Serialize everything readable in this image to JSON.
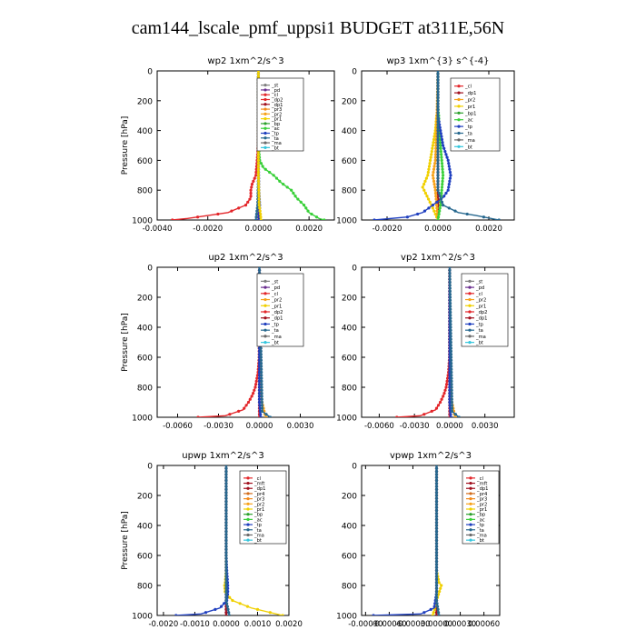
{
  "figure": {
    "title": "cam144_lscale_pmf_uppsi1  BUDGET at311E,56N"
  },
  "colors": {
    "st": "#7f7f7f",
    "pd": "#6a2d8f",
    "cl": "#e3262a",
    "dp1": "#a0101e",
    "dp2": "#e3262a",
    "mft": "#a0101e",
    "pr1": "#f0d000",
    "pr2": "#f7a21a",
    "pr3": "#f28a1c",
    "pr4": "#d26d1c",
    "bp": "#2ca02c",
    "bp1": "#2ca02c",
    "ac": "#39d039",
    "tp": "#1f3fbf",
    "ta": "#27688f",
    "ma": "#6a6a6a",
    "bt": "#35c6dd"
  },
  "chart_data": [
    {
      "type": "line",
      "title": "wp2  1xm^2/s^3",
      "ylabel": "Pressure [hPa]",
      "ylim": [
        1000,
        0
      ],
      "xlim": [
        -0.004,
        0.003
      ],
      "yticks": [
        "0",
        "200",
        "400",
        "600",
        "800",
        "1000"
      ],
      "xticks": [
        "-0.0040",
        "-0.0020",
        "0.0000",
        "0.0020"
      ],
      "legend": [
        "_st",
        "_pd",
        "_cl",
        "_dp2",
        "_dp1",
        "_pr3",
        "_pr2",
        "_pr1",
        "_bp",
        "_ac",
        "_tp",
        "_ta",
        "_ma",
        "_bt"
      ],
      "series": [
        {
          "key": "pd",
          "p": [
            0,
            200,
            400,
            600,
            700,
            800,
            900,
            950,
            1000
          ],
          "x": [
            0,
            0,
            0,
            0,
            0,
            0,
            0,
            0,
            0
          ]
        },
        {
          "key": "cl",
          "p": [
            0,
            300,
            500,
            600,
            700,
            760,
            800,
            850,
            900,
            950,
            990,
            1000
          ],
          "x": [
            0,
            0,
            -1e-05,
            -5e-05,
            -0.0001,
            -0.00025,
            -0.0003,
            -0.0003,
            -0.0005,
            -0.0012,
            -0.0028,
            -0.0034
          ]
        },
        {
          "key": "ac",
          "p": [
            0,
            500,
            600,
            650,
            700,
            750,
            800,
            850,
            900,
            950,
            990,
            1000
          ],
          "x": [
            0,
            0,
            5e-05,
            0.0002,
            0.0006,
            0.0009,
            0.0013,
            0.0015,
            0.0018,
            0.002,
            0.0024,
            0.0026
          ]
        },
        {
          "key": "tp",
          "p": [
            0,
            600,
            800,
            900,
            950,
            1000
          ],
          "x": [
            0,
            0,
            2e-05,
            5e-05,
            5e-05,
            3e-05
          ]
        },
        {
          "key": "ta",
          "p": [
            0,
            700,
            900,
            1000
          ],
          "x": [
            0,
            0,
            -3e-05,
            -0.0001
          ]
        },
        {
          "key": "pr1",
          "p": [
            0,
            700,
            900,
            960,
            1000
          ],
          "x": [
            0,
            0,
            3e-05,
            8e-05,
            0.0001
          ]
        }
      ]
    },
    {
      "type": "line",
      "title": "wp3  1xm^{3} s^{-4}",
      "ylabel": "",
      "ylim": [
        1000,
        0
      ],
      "xlim": [
        -0.003,
        0.003
      ],
      "yticks": [
        "0",
        "200",
        "400",
        "600",
        "800",
        "1000"
      ],
      "xticks": [
        "-0.0020",
        "0.0000",
        "0.0020"
      ],
      "legend": [
        "_cl",
        "_dp1",
        "_pr2",
        "_pr1",
        "_bp1",
        "_ac",
        "_tp",
        "_ta",
        "_ma",
        "_bt"
      ],
      "series": [
        {
          "key": "cl",
          "p": [
            0,
            200,
            400,
            600,
            800,
            1000
          ],
          "x": [
            0,
            0,
            0,
            0,
            0,
            0
          ]
        },
        {
          "key": "dp1",
          "p": [
            0,
            300,
            500,
            700,
            900,
            1000
          ],
          "x": [
            0,
            0,
            0,
            0,
            0,
            0
          ]
        },
        {
          "key": "pr1",
          "p": [
            0,
            250,
            300,
            400,
            500,
            600,
            700,
            780,
            850,
            920,
            1000
          ],
          "x": [
            0,
            0,
            -5e-05,
            -0.0001,
            -0.0002,
            -0.0003,
            -0.0004,
            -0.0006,
            -0.0004,
            -0.0002,
            0
          ]
        },
        {
          "key": "pr2",
          "p": [
            0,
            400,
            600,
            700,
            800,
            900,
            1000
          ],
          "x": [
            0,
            -5e-05,
            -0.0001,
            -0.0002,
            -0.0001,
            -5e-05,
            0
          ]
        },
        {
          "key": "ac",
          "p": [
            0,
            250,
            300,
            400,
            500,
            600,
            700,
            800,
            900,
            950,
            1000
          ],
          "x": [
            0,
            0,
            3e-05,
            5e-05,
            0.0001,
            0.00015,
            0.0002,
            0.00015,
            0.0001,
            5e-05,
            0
          ]
        },
        {
          "key": "tp",
          "p": [
            0,
            300,
            500,
            600,
            700,
            800,
            850,
            900,
            950,
            980,
            1000
          ],
          "x": [
            0,
            0,
            0.0002,
            0.0004,
            0.0005,
            0.0004,
            0.0002,
            -0.0002,
            -0.0006,
            -0.0012,
            -0.0025
          ]
        },
        {
          "key": "ta",
          "p": [
            0,
            800,
            900,
            950,
            970,
            1000
          ],
          "x": [
            0,
            0,
            0.0002,
            0.0008,
            0.0015,
            0.0024
          ]
        }
      ]
    },
    {
      "type": "line",
      "title": "up2  1xm^2/s^3",
      "ylabel": "Pressure [hPa]",
      "ylim": [
        1000,
        0
      ],
      "xlim": [
        -0.0075,
        0.0055
      ],
      "yticks": [
        "0",
        "200",
        "400",
        "600",
        "800",
        "1000"
      ],
      "xticks": [
        "-0.0060",
        "-0.0030",
        "0.0000",
        "0.0030"
      ],
      "legend": [
        "_st",
        "_pd",
        "_cl",
        "_pr2",
        "_pr1",
        "_dp2",
        "_dp1",
        "_tp",
        "_ta",
        "_ma",
        "_bt"
      ],
      "series": [
        {
          "key": "pd",
          "p": [
            0,
            200,
            400,
            600,
            800,
            1000
          ],
          "x": [
            0,
            0,
            0,
            0,
            0,
            0
          ]
        },
        {
          "key": "cl",
          "p": [
            0,
            200,
            400,
            600,
            800,
            900,
            1000
          ],
          "x": [
            0,
            0,
            0,
            0,
            0,
            0,
            0
          ]
        },
        {
          "key": "dp2",
          "p": [
            0,
            600,
            700,
            800,
            850,
            900,
            950,
            990,
            1000
          ],
          "x": [
            0,
            -2e-05,
            -0.0001,
            -0.0003,
            -0.0005,
            -0.0008,
            -0.0012,
            -0.0025,
            -0.0045
          ]
        },
        {
          "key": "pr2",
          "p": [
            0,
            800,
            900,
            980,
            1000
          ],
          "x": [
            0,
            5e-05,
            0.0002,
            0.0004,
            0.0005
          ]
        },
        {
          "key": "tp",
          "p": [
            0,
            900,
            1000
          ],
          "x": [
            0,
            0,
            0.0001
          ]
        },
        {
          "key": "ta",
          "p": [
            0,
            960,
            1000
          ],
          "x": [
            0,
            0.0002,
            0.0008
          ]
        }
      ]
    },
    {
      "type": "line",
      "title": "vp2  1xm^2/s^3",
      "ylabel": "",
      "ylim": [
        1000,
        0
      ],
      "xlim": [
        -0.0075,
        0.0055
      ],
      "yticks": [
        "0",
        "200",
        "400",
        "600",
        "800",
        "1000"
      ],
      "xticks": [
        "-0.0060",
        "-0.0030",
        "0.0000",
        "0.0030"
      ],
      "legend": [
        "_st",
        "_pd",
        "_cl",
        "_pr2",
        "_pr1",
        "_dp2",
        "_dp1",
        "_tp",
        "_ta",
        "_ma",
        "_bt"
      ],
      "series": [
        {
          "key": "pd",
          "p": [
            0,
            200,
            400,
            600,
            800,
            1000
          ],
          "x": [
            0,
            0,
            0,
            0,
            0,
            0
          ]
        },
        {
          "key": "cl",
          "p": [
            0,
            200,
            400,
            600,
            800,
            900,
            1000
          ],
          "x": [
            0,
            0,
            0,
            0,
            0,
            0,
            0
          ]
        },
        {
          "key": "dp2",
          "p": [
            0,
            600,
            700,
            800,
            850,
            900,
            950,
            990,
            1000
          ],
          "x": [
            0,
            -2e-05,
            -0.0001,
            -0.0003,
            -0.0005,
            -0.0008,
            -0.0012,
            -0.0025,
            -0.0045
          ]
        },
        {
          "key": "pr2",
          "p": [
            0,
            800,
            900,
            980,
            1000
          ],
          "x": [
            0,
            5e-05,
            0.0002,
            0.0004,
            0.0005
          ]
        },
        {
          "key": "tp",
          "p": [
            0,
            900,
            1000
          ],
          "x": [
            0,
            0,
            0.0001
          ]
        },
        {
          "key": "ta",
          "p": [
            0,
            960,
            1000
          ],
          "x": [
            0,
            0.0002,
            0.0008
          ]
        }
      ]
    },
    {
      "type": "line",
      "title": "upwp  1xm^2/s^3",
      "ylabel": "Pressure [hPa]",
      "ylim": [
        1000,
        0
      ],
      "xlim": [
        -0.0022,
        0.002
      ],
      "yticks": [
        "0",
        "200",
        "400",
        "600",
        "800",
        "1000"
      ],
      "xticks": [
        "-0.0020",
        "-0.0010",
        "0.0000",
        "0.0010",
        "0.0020"
      ],
      "legend": [
        "_cl",
        "_mft",
        "_dp1",
        "_pr4",
        "_pr3",
        "_pr2",
        "_pr1",
        "_bp",
        "_ac",
        "_tp",
        "_ta",
        "_ma",
        "_bt"
      ],
      "series": [
        {
          "key": "pd",
          "p": [
            0,
            200,
            400,
            600,
            800,
            1000
          ],
          "x": [
            0,
            0,
            0,
            0,
            0,
            0
          ]
        },
        {
          "key": "mft",
          "p": [
            0,
            200,
            400,
            600,
            700,
            800,
            900,
            1000
          ],
          "x": [
            0,
            0,
            0,
            0,
            0,
            0,
            0,
            0
          ]
        },
        {
          "key": "pr1",
          "p": [
            0,
            700,
            780,
            800,
            850,
            900,
            950,
            1000
          ],
          "x": [
            0,
            0,
            -3e-05,
            -5e-05,
            -3e-05,
            0.0002,
            0.0008,
            0.0018
          ]
        },
        {
          "key": "tp",
          "p": [
            0,
            600,
            700,
            800,
            850,
            900,
            950,
            990,
            1000
          ],
          "x": [
            0,
            0,
            2e-05,
            5e-05,
            5e-05,
            2e-05,
            -0.0002,
            -0.0008,
            -0.0016
          ]
        },
        {
          "key": "ta",
          "p": [
            0,
            900,
            1000
          ],
          "x": [
            0,
            0,
            0.0001
          ]
        }
      ]
    },
    {
      "type": "line",
      "title": "vpwp  1xm^2/s^3",
      "ylabel": "",
      "ylim": [
        1000,
        0
      ],
      "xlim": [
        -0.00095,
        0.0008
      ],
      "yticks": [
        "0",
        "200",
        "400",
        "600",
        "800",
        "1000"
      ],
      "xticks": [
        "-0.00090",
        "-0.00060",
        "-0.00030",
        "0.00000",
        "0.00030",
        "0.00060"
      ],
      "legend": [
        "_cl",
        "_mft",
        "_dp1",
        "_pr4",
        "_pr3",
        "_pr2",
        "_pr1",
        "_bp",
        "_ac",
        "_tp",
        "_ta",
        "_ma",
        "_bt"
      ],
      "series": [
        {
          "key": "pd",
          "p": [
            0,
            200,
            400,
            600,
            800,
            1000
          ],
          "x": [
            0,
            0,
            0,
            0,
            0,
            0
          ]
        },
        {
          "key": "mft",
          "p": [
            0,
            200,
            400,
            600,
            700,
            800,
            900,
            1000
          ],
          "x": [
            0,
            0,
            0,
            0,
            0,
            0,
            0,
            0
          ]
        },
        {
          "key": "pr1",
          "p": [
            0,
            700,
            780,
            800,
            850,
            900,
            950,
            1000
          ],
          "x": [
            0,
            0,
            3e-05,
            6e-05,
            3e-05,
            0,
            -2e-05,
            -5e-05
          ]
        },
        {
          "key": "tp",
          "p": [
            0,
            850,
            950,
            990,
            1000
          ],
          "x": [
            0,
            0,
            -3e-05,
            -0.0002,
            -0.0008
          ]
        },
        {
          "key": "ta",
          "p": [
            0,
            900,
            1000
          ],
          "x": [
            0,
            0,
            3e-05
          ]
        }
      ]
    }
  ]
}
